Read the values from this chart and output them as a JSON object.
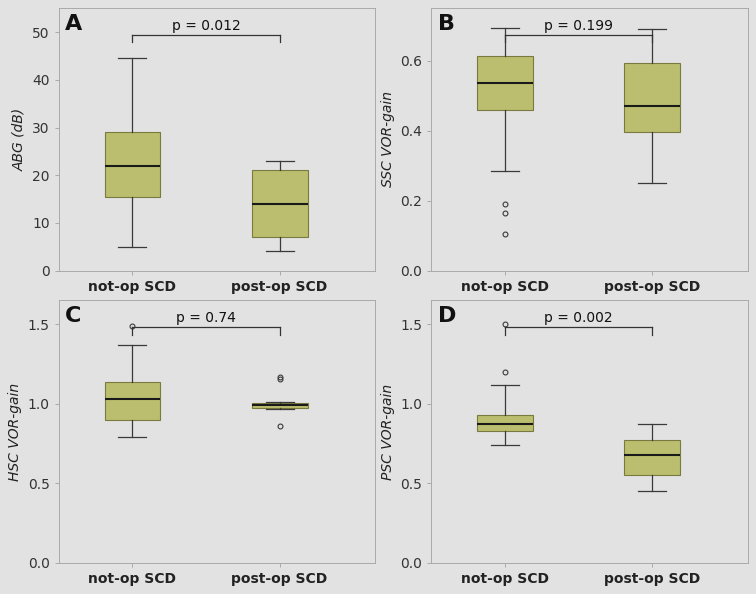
{
  "background_color": "#e2e2e2",
  "fig_facecolor": "#e2e2e2",
  "box_color": "#bbbe6e",
  "box_edge_color": "#7a7a40",
  "median_color": "#1a1a1a",
  "whisker_color": "#3a3a3a",
  "cap_color": "#3a3a3a",
  "outlier_color": "#3a3a3a",
  "panel_label_fontsize": 16,
  "axis_label_fontsize": 10,
  "tick_label_fontsize": 10,
  "pval_fontsize": 10,
  "panels": [
    {
      "label": "A",
      "ylabel": "ABG (dB)",
      "ylim": [
        0,
        55
      ],
      "yticks": [
        0,
        10,
        20,
        30,
        40,
        50
      ],
      "pval": "p = 0.012",
      "groups": [
        "not-op SCD",
        "post-op SCD"
      ],
      "box_stats": [
        {
          "q1": 15.5,
          "median": 22,
          "q3": 29,
          "whislo": 5,
          "whishi": 44.5,
          "fliers": []
        },
        {
          "q1": 7,
          "median": 14,
          "q3": 21,
          "whislo": 4,
          "whishi": 23,
          "fliers": []
        }
      ]
    },
    {
      "label": "B",
      "ylabel": "SSC VOR-gain",
      "ylim": [
        0,
        0.75
      ],
      "yticks": [
        0,
        0.2,
        0.4,
        0.6
      ],
      "pval": "p = 0.199",
      "groups": [
        "not-op SCD",
        "post-op SCD"
      ],
      "box_stats": [
        {
          "q1": 0.46,
          "median": 0.535,
          "q3": 0.615,
          "whislo": 0.285,
          "whishi": 0.695,
          "fliers": [
            0.19,
            0.165,
            0.105
          ]
        },
        {
          "q1": 0.395,
          "median": 0.47,
          "q3": 0.595,
          "whislo": 0.25,
          "whishi": 0.69,
          "fliers": []
        }
      ]
    },
    {
      "label": "C",
      "ylabel": "HSC VOR-gain",
      "ylim": [
        0,
        1.65
      ],
      "yticks": [
        0,
        0.5,
        1.0,
        1.5
      ],
      "pval": "p = 0.74",
      "groups": [
        "not-op SCD",
        "post-op SCD"
      ],
      "box_stats": [
        {
          "q1": 0.9,
          "median": 1.03,
          "q3": 1.14,
          "whislo": 0.79,
          "whishi": 1.37,
          "fliers": [
            1.49
          ]
        },
        {
          "q1": 0.975,
          "median": 0.99,
          "q3": 1.005,
          "whislo": 0.97,
          "whishi": 1.01,
          "fliers": [
            1.17,
            1.155,
            0.86
          ]
        }
      ]
    },
    {
      "label": "D",
      "ylabel": "PSC VOR-gain",
      "ylim": [
        0,
        1.65
      ],
      "yticks": [
        0,
        0.5,
        1.0,
        1.5
      ],
      "pval": "p = 0.002",
      "groups": [
        "not-op SCD",
        "post-op SCD"
      ],
      "box_stats": [
        {
          "q1": 0.83,
          "median": 0.875,
          "q3": 0.93,
          "whislo": 0.74,
          "whishi": 1.12,
          "fliers": [
            1.5,
            1.2
          ]
        },
        {
          "q1": 0.55,
          "median": 0.68,
          "q3": 0.77,
          "whislo": 0.45,
          "whishi": 0.87,
          "fliers": []
        }
      ]
    }
  ]
}
